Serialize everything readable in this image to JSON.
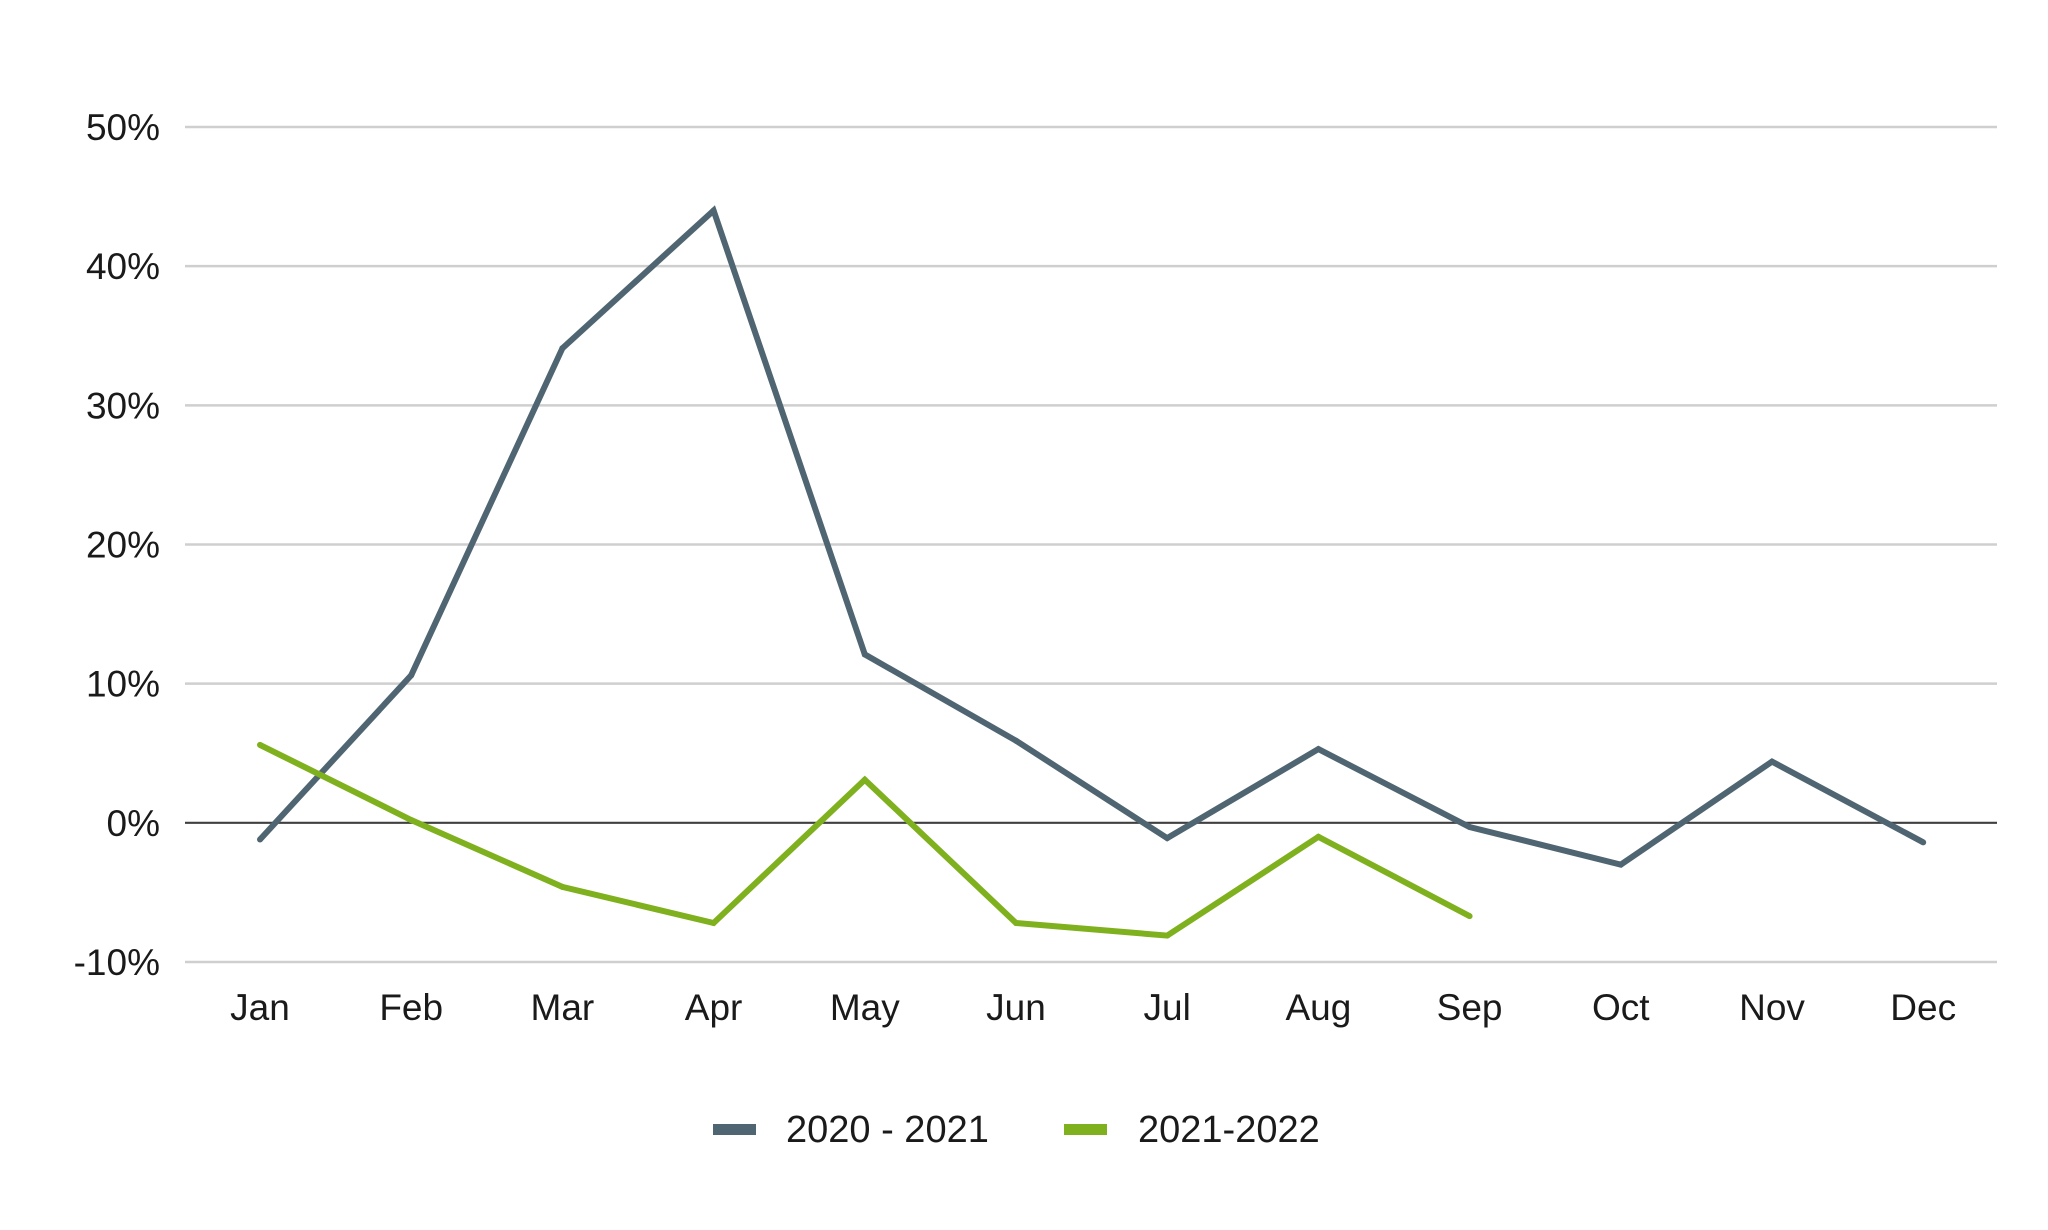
{
  "chart_data": {
    "type": "line",
    "title": "",
    "xlabel": "",
    "ylabel": "",
    "categories": [
      "Jan",
      "Feb",
      "Mar",
      "Apr",
      "May",
      "Jun",
      "Jul",
      "Aug",
      "Sep",
      "Oct",
      "Nov",
      "Dec"
    ],
    "ylim": [
      -10,
      50
    ],
    "yticks": [
      -10,
      0,
      10,
      20,
      30,
      40,
      50
    ],
    "ytick_labels": [
      "-10%",
      "0%",
      "10%",
      "20%",
      "30%",
      "40%",
      "50%"
    ],
    "grid": true,
    "legend_position": "bottom",
    "series": [
      {
        "name": "2020 - 2021",
        "color": "#4f6572",
        "values": [
          -1.2,
          10.6,
          34.1,
          44.0,
          12.1,
          5.9,
          -1.1,
          5.3,
          -0.3,
          -3.0,
          4.4,
          -1.4
        ]
      },
      {
        "name": "2021-2022",
        "color": "#7fb01e",
        "values": [
          5.6,
          0.2,
          -4.6,
          -7.2,
          3.1,
          -7.2,
          -8.1,
          -1.0,
          -6.7,
          null,
          null,
          null
        ]
      }
    ]
  }
}
